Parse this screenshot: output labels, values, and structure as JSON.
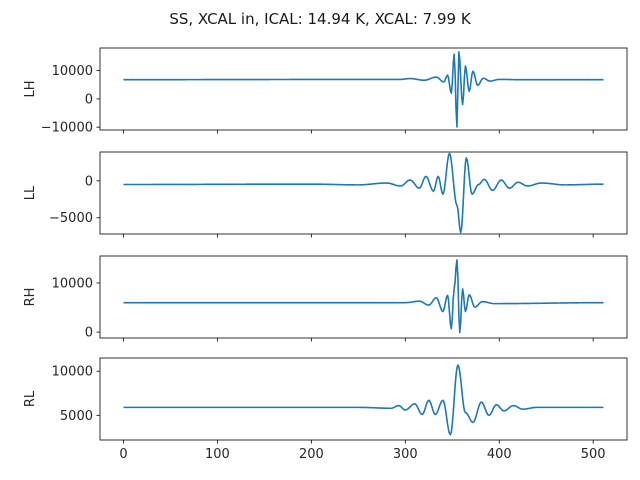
{
  "chart_data": {
    "type": "line",
    "title": "SS, XCAL in, ICAL: 14.94 K, XCAL: 7.99 K",
    "x_range": [
      0,
      511
    ],
    "xlim": [
      -25,
      536
    ],
    "x_ticks": [
      0,
      100,
      200,
      300,
      400,
      500
    ],
    "x_tick_labels": [
      "0",
      "100",
      "200",
      "300",
      "400",
      "500"
    ],
    "grid": false,
    "color": "#1f77b4",
    "subplots": [
      {
        "ylabel": "LH",
        "ylim": [
          -11000,
          18000
        ],
        "y_ticks": [
          -10000,
          0,
          10000
        ],
        "y_tick_labels": [
          "−10000",
          "0",
          "10000"
        ],
        "baseline": 6800,
        "points": [
          [
            0,
            6800
          ],
          [
            295,
            6900
          ],
          [
            305,
            7200
          ],
          [
            320,
            6600
          ],
          [
            333,
            7700
          ],
          [
            341,
            6000
          ],
          [
            345,
            8400
          ],
          [
            349,
            2000
          ],
          [
            352,
            15800
          ],
          [
            355,
            -9900
          ],
          [
            357,
            16600
          ],
          [
            361,
            -2000
          ],
          [
            364,
            11600
          ],
          [
            368,
            2700
          ],
          [
            372,
            9800
          ],
          [
            377,
            4800
          ],
          [
            383,
            7300
          ],
          [
            390,
            6300
          ],
          [
            400,
            6900
          ],
          [
            420,
            6800
          ],
          [
            511,
            6800
          ]
        ]
      },
      {
        "ylabel": "LL",
        "ylim": [
          -7200,
          3900
        ],
        "y_ticks": [
          -5000,
          0
        ],
        "y_tick_labels": [
          "−5000",
          "0"
        ],
        "baseline": -500,
        "points": [
          [
            0,
            -500
          ],
          [
            200,
            -450
          ],
          [
            250,
            -550
          ],
          [
            280,
            -300
          ],
          [
            295,
            -700
          ],
          [
            305,
            100
          ],
          [
            315,
            -1000
          ],
          [
            322,
            600
          ],
          [
            330,
            -1400
          ],
          [
            335,
            600
          ],
          [
            340,
            -1800
          ],
          [
            347,
            3700
          ],
          [
            355,
            -3300
          ],
          [
            359,
            -7000
          ],
          [
            365,
            3100
          ],
          [
            371,
            -1800
          ],
          [
            378,
            -500
          ],
          [
            384,
            200
          ],
          [
            393,
            -1300
          ],
          [
            402,
            100
          ],
          [
            411,
            -1000
          ],
          [
            420,
            -200
          ],
          [
            430,
            -700
          ],
          [
            445,
            -300
          ],
          [
            470,
            -550
          ],
          [
            511,
            -450
          ]
        ]
      },
      {
        "ylabel": "RH",
        "ylim": [
          -1200,
          15500
        ],
        "y_ticks": [
          0,
          10000
        ],
        "y_tick_labels": [
          "0",
          "10000"
        ],
        "baseline": 6000,
        "points": [
          [
            0,
            6000
          ],
          [
            300,
            6000
          ],
          [
            315,
            6300
          ],
          [
            325,
            5500
          ],
          [
            333,
            7000
          ],
          [
            340,
            4200
          ],
          [
            345,
            7500
          ],
          [
            349,
            700
          ],
          [
            352,
            8800
          ],
          [
            355,
            14700
          ],
          [
            358,
            -100
          ],
          [
            361,
            8800
          ],
          [
            364,
            4200
          ],
          [
            368,
            7600
          ],
          [
            374,
            5100
          ],
          [
            382,
            6200
          ],
          [
            395,
            5800
          ],
          [
            511,
            6000
          ]
        ]
      },
      {
        "ylabel": "RL",
        "ylim": [
          2200,
          11500
        ],
        "y_ticks": [
          5000,
          10000
        ],
        "y_tick_labels": [
          "5000",
          "10000"
        ],
        "baseline": 5900,
        "points": [
          [
            0,
            5900
          ],
          [
            250,
            5900
          ],
          [
            285,
            5800
          ],
          [
            293,
            6100
          ],
          [
            300,
            5600
          ],
          [
            310,
            6300
          ],
          [
            318,
            5100
          ],
          [
            325,
            6700
          ],
          [
            332,
            5100
          ],
          [
            340,
            6700
          ],
          [
            348,
            2800
          ],
          [
            356,
            10700
          ],
          [
            364,
            5300
          ],
          [
            372,
            4200
          ],
          [
            381,
            6500
          ],
          [
            389,
            5000
          ],
          [
            397,
            6200
          ],
          [
            405,
            5500
          ],
          [
            415,
            6100
          ],
          [
            425,
            5700
          ],
          [
            440,
            5900
          ],
          [
            511,
            5900
          ]
        ]
      }
    ]
  }
}
